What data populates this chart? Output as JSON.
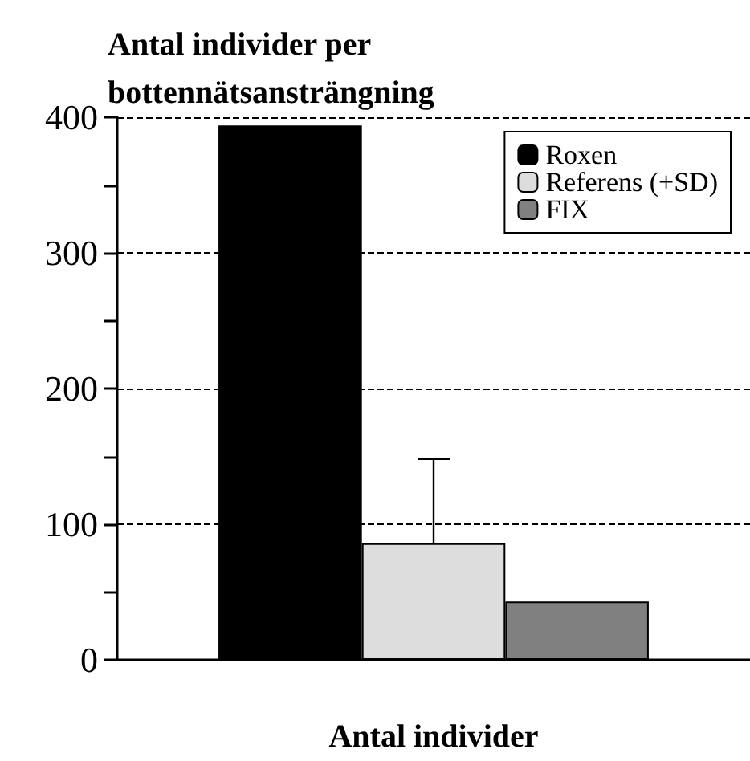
{
  "chart_data": {
    "type": "bar",
    "title": "Antal individer per bottennätsansträngning",
    "xlabel": "Antal individer",
    "categories": [
      null
    ],
    "series": [
      {
        "name": "Roxen",
        "color": "#000000",
        "values": [
          394
        ]
      },
      {
        "name": "Referens (+SD)",
        "color": "#dddddd",
        "values": [
          86
        ],
        "errors": [
          [
            86,
            148
          ]
        ]
      },
      {
        "name": "FIX",
        "color": "#808080",
        "values": [
          43
        ]
      }
    ],
    "ylim": [
      0,
      400
    ],
    "yticks": [
      0,
      {
        "value": 50,
        "label": null
      },
      100,
      {
        "value": 150,
        "label": null
      },
      200,
      {
        "value": 250,
        "label": null
      },
      300,
      {
        "value": 350,
        "label": null
      },
      400
    ],
    "grid": "y",
    "legend": "top right"
  }
}
